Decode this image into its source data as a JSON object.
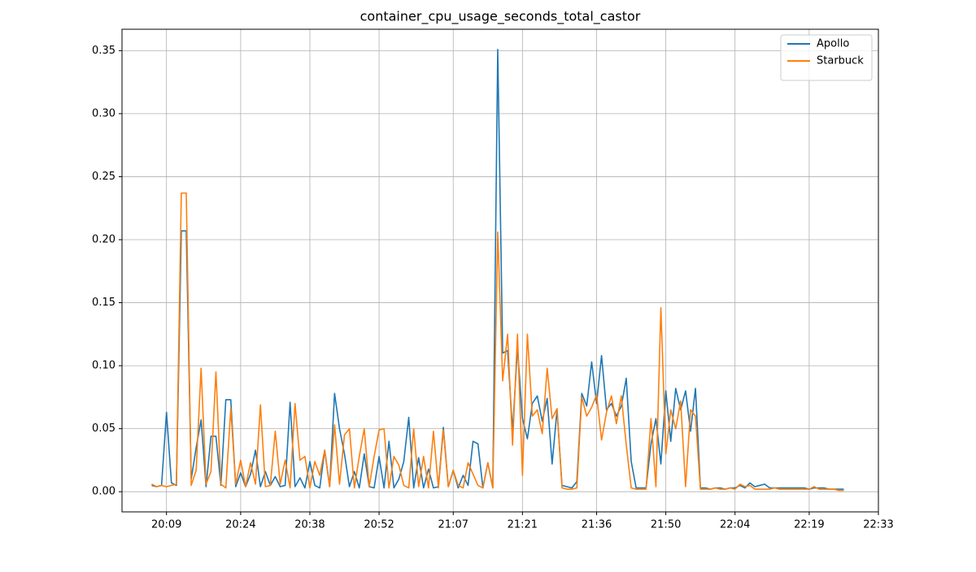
{
  "chart_data": {
    "type": "line",
    "title": "container_cpu_usage_seconds_total_castor",
    "x": [
      "20:06",
      "20:07",
      "20:08",
      "20:09",
      "20:10",
      "20:11",
      "20:12",
      "20:13",
      "20:14",
      "20:15",
      "20:16",
      "20:17",
      "20:18",
      "20:19",
      "20:20",
      "20:21",
      "20:22",
      "20:23",
      "20:24",
      "20:25",
      "20:26",
      "20:27",
      "20:28",
      "20:29",
      "20:30",
      "20:31",
      "20:32",
      "20:33",
      "20:34",
      "20:35",
      "20:36",
      "20:37",
      "20:38",
      "20:39",
      "20:40",
      "20:41",
      "20:42",
      "20:43",
      "20:44",
      "20:45",
      "20:46",
      "20:47",
      "20:48",
      "20:49",
      "20:50",
      "20:51",
      "20:52",
      "20:53",
      "20:54",
      "20:55",
      "20:56",
      "20:57",
      "20:58",
      "20:59",
      "21:00",
      "21:01",
      "21:02",
      "21:03",
      "21:04",
      "21:05",
      "21:06",
      "21:07",
      "21:08",
      "21:09",
      "21:10",
      "21:11",
      "21:12",
      "21:13",
      "21:14",
      "21:15",
      "21:16",
      "21:17",
      "21:18",
      "21:19",
      "21:20",
      "21:21",
      "21:22",
      "21:23",
      "21:24",
      "21:25",
      "21:26",
      "21:27",
      "21:28",
      "21:29",
      "21:30",
      "21:31",
      "21:32",
      "21:33",
      "21:34",
      "21:35",
      "21:36",
      "21:37",
      "21:38",
      "21:39",
      "21:40",
      "21:41",
      "21:42",
      "21:43",
      "21:44",
      "21:45",
      "21:46",
      "21:47",
      "21:48",
      "21:49",
      "21:50",
      "21:51",
      "21:52",
      "21:53",
      "21:54",
      "21:55",
      "21:56",
      "21:57",
      "21:58",
      "21:59",
      "22:00",
      "22:01",
      "22:02",
      "22:03",
      "22:04",
      "22:05",
      "22:06",
      "22:07",
      "22:08",
      "22:09",
      "22:10",
      "22:11",
      "22:12",
      "22:13",
      "22:14",
      "22:15",
      "22:16",
      "22:17",
      "22:18",
      "22:19",
      "22:20",
      "22:21",
      "22:22",
      "22:23",
      "22:24",
      "22:25",
      "22:26"
    ],
    "series": [
      {
        "name": "Apollo",
        "color": "#1f77b4",
        "values": [
          0.005,
          0.004,
          0.005,
          0.063,
          0.007,
          0.005,
          0.207,
          0.207,
          0.01,
          0.035,
          0.057,
          0.004,
          0.044,
          0.044,
          0.005,
          0.073,
          0.073,
          0.004,
          0.015,
          0.004,
          0.014,
          0.033,
          0.004,
          0.016,
          0.005,
          0.012,
          0.004,
          0.005,
          0.071,
          0.004,
          0.011,
          0.003,
          0.024,
          0.005,
          0.003,
          0.033,
          0.004,
          0.078,
          0.05,
          0.03,
          0.004,
          0.016,
          0.003,
          0.03,
          0.004,
          0.003,
          0.028,
          0.003,
          0.04,
          0.003,
          0.01,
          0.024,
          0.059,
          0.003,
          0.027,
          0.003,
          0.018,
          0.003,
          0.004,
          0.051,
          0.004,
          0.017,
          0.003,
          0.013,
          0.005,
          0.04,
          0.038,
          0.003,
          0.023,
          0.003,
          0.351,
          0.11,
          0.112,
          0.048,
          0.114,
          0.058,
          0.042,
          0.07,
          0.076,
          0.056,
          0.074,
          0.022,
          0.065,
          0.005,
          0.004,
          0.003,
          0.008,
          0.078,
          0.068,
          0.103,
          0.07,
          0.108,
          0.065,
          0.07,
          0.06,
          0.068,
          0.09,
          0.024,
          0.003,
          0.003,
          0.003,
          0.038,
          0.058,
          0.022,
          0.08,
          0.04,
          0.082,
          0.065,
          0.08,
          0.048,
          0.082,
          0.003,
          0.003,
          0.002,
          0.003,
          0.003,
          0.002,
          0.003,
          0.003,
          0.005,
          0.003,
          0.007,
          0.004,
          0.005,
          0.006,
          0.003,
          0.003,
          0.003,
          0.003,
          0.003,
          0.003,
          0.003,
          0.003,
          0.002,
          0.003,
          0.003,
          0.003,
          0.002,
          0.002,
          0.002,
          0.002
        ]
      },
      {
        "name": "Starbuck",
        "color": "#ff7f0e",
        "values": [
          0.006,
          0.004,
          0.005,
          0.004,
          0.005,
          0.006,
          0.237,
          0.237,
          0.005,
          0.017,
          0.098,
          0.006,
          0.016,
          0.095,
          0.006,
          0.003,
          0.066,
          0.006,
          0.025,
          0.004,
          0.023,
          0.006,
          0.069,
          0.004,
          0.005,
          0.048,
          0.006,
          0.025,
          0.003,
          0.07,
          0.025,
          0.028,
          0.003,
          0.024,
          0.013,
          0.033,
          0.004,
          0.053,
          0.006,
          0.045,
          0.05,
          0.003,
          0.028,
          0.05,
          0.004,
          0.028,
          0.049,
          0.05,
          0.003,
          0.028,
          0.021,
          0.005,
          0.003,
          0.05,
          0.004,
          0.028,
          0.003,
          0.048,
          0.003,
          0.049,
          0.004,
          0.017,
          0.005,
          0.003,
          0.023,
          0.014,
          0.005,
          0.003,
          0.023,
          0.003,
          0.206,
          0.088,
          0.125,
          0.037,
          0.125,
          0.013,
          0.125,
          0.06,
          0.065,
          0.046,
          0.098,
          0.058,
          0.066,
          0.003,
          0.002,
          0.002,
          0.003,
          0.075,
          0.06,
          0.067,
          0.077,
          0.041,
          0.063,
          0.076,
          0.054,
          0.076,
          0.037,
          0.003,
          0.002,
          0.002,
          0.002,
          0.058,
          0.004,
          0.146,
          0.03,
          0.065,
          0.05,
          0.072,
          0.004,
          0.065,
          0.06,
          0.002,
          0.002,
          0.002,
          0.003,
          0.002,
          0.002,
          0.003,
          0.002,
          0.006,
          0.004,
          0.005,
          0.002,
          0.002,
          0.002,
          0.002,
          0.003,
          0.002,
          0.002,
          0.002,
          0.002,
          0.002,
          0.002,
          0.002,
          0.004,
          0.002,
          0.002,
          0.002,
          0.002,
          0.001,
          0.001
        ]
      }
    ],
    "xlim": [
      "20:00",
      "22:33"
    ],
    "xticks": [
      "20:09",
      "20:24",
      "20:38",
      "20:52",
      "21:07",
      "21:21",
      "21:36",
      "21:50",
      "22:04",
      "22:19",
      "22:33"
    ],
    "ylim": [
      -0.016,
      0.367
    ],
    "yticks": [
      {
        "value": 0,
        "label": "0.00"
      },
      {
        "value": 0.05,
        "label": "0.05"
      },
      {
        "value": 0.1,
        "label": "0.10"
      },
      {
        "value": 0.15,
        "label": "0.15"
      },
      {
        "value": 0.2,
        "label": "0.20"
      },
      {
        "value": 0.25,
        "label": "0.25"
      },
      {
        "value": 0.3,
        "label": "0.30"
      },
      {
        "value": 0.35,
        "label": "0.35"
      }
    ],
    "grid": true,
    "legend": "upper right"
  }
}
